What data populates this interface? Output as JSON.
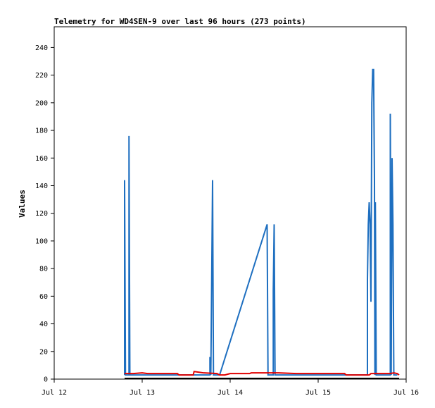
{
  "chart_data": {
    "type": "line",
    "title": "Telemetry for WD4SEN-9 over last 96 hours (273 points)",
    "xlabel": "",
    "ylabel": "Values",
    "x_ticks": [
      "Jul 12",
      "Jul 13",
      "Jul 14",
      "Jul 15",
      "Jul 16"
    ],
    "x_range_days": [
      12,
      16
    ],
    "y_ticks": [
      0,
      20,
      40,
      60,
      80,
      100,
      120,
      140,
      160,
      180,
      200,
      220,
      240
    ],
    "ylim": [
      0,
      255
    ],
    "grid": false,
    "legend": "none",
    "x_units": "day of July (fractional)",
    "series": [
      {
        "color": "#1e6fc0",
        "points": [
          [
            12.8,
            3
          ],
          [
            12.8,
            144
          ],
          [
            12.81,
            3
          ],
          [
            12.85,
            3
          ],
          [
            12.85,
            176
          ],
          [
            12.86,
            3
          ],
          [
            13.77,
            3
          ],
          [
            13.77,
            16
          ],
          [
            13.78,
            3
          ],
          [
            13.79,
            72
          ],
          [
            13.8,
            144
          ],
          [
            13.81,
            3
          ],
          [
            13.88,
            3
          ],
          [
            14.42,
            112
          ],
          [
            14.43,
            3
          ],
          [
            14.49,
            3
          ],
          [
            14.49,
            64
          ],
          [
            14.5,
            112
          ],
          [
            14.51,
            3
          ],
          [
            15.56,
            3
          ],
          [
            15.56,
            72
          ],
          [
            15.57,
            112
          ],
          [
            15.58,
            128
          ],
          [
            15.59,
            112
          ],
          [
            15.6,
            56
          ],
          [
            15.61,
            200
          ],
          [
            15.62,
            224
          ],
          [
            15.63,
            224
          ],
          [
            15.64,
            144
          ],
          [
            15.645,
            3
          ],
          [
            15.65,
            128
          ],
          [
            15.66,
            3
          ],
          [
            15.82,
            3
          ],
          [
            15.82,
            192
          ],
          [
            15.83,
            3
          ],
          [
            15.84,
            160
          ],
          [
            15.85,
            112
          ],
          [
            15.86,
            3
          ],
          [
            15.9,
            3
          ]
        ]
      },
      {
        "color": "#e00000",
        "points": [
          [
            12.8,
            4
          ],
          [
            12.9,
            4
          ],
          [
            13.0,
            4.5
          ],
          [
            13.06,
            4
          ],
          [
            13.2,
            4
          ],
          [
            13.4,
            4
          ],
          [
            13.42,
            3
          ],
          [
            13.58,
            3
          ],
          [
            13.59,
            5.5
          ],
          [
            13.7,
            4.5
          ],
          [
            13.85,
            4
          ],
          [
            13.88,
            3
          ],
          [
            13.94,
            3
          ],
          [
            14.0,
            4
          ],
          [
            14.22,
            4
          ],
          [
            14.24,
            4.5
          ],
          [
            14.55,
            4.5
          ],
          [
            14.75,
            4
          ],
          [
            15.3,
            4
          ],
          [
            15.32,
            3
          ],
          [
            15.58,
            3
          ],
          [
            15.6,
            4
          ],
          [
            15.82,
            4
          ],
          [
            15.86,
            4.5
          ],
          [
            15.9,
            4
          ],
          [
            15.92,
            3
          ]
        ]
      },
      {
        "color": "#000000",
        "points": [
          [
            12.8,
            0.5
          ],
          [
            15.92,
            0.5
          ]
        ]
      }
    ]
  }
}
